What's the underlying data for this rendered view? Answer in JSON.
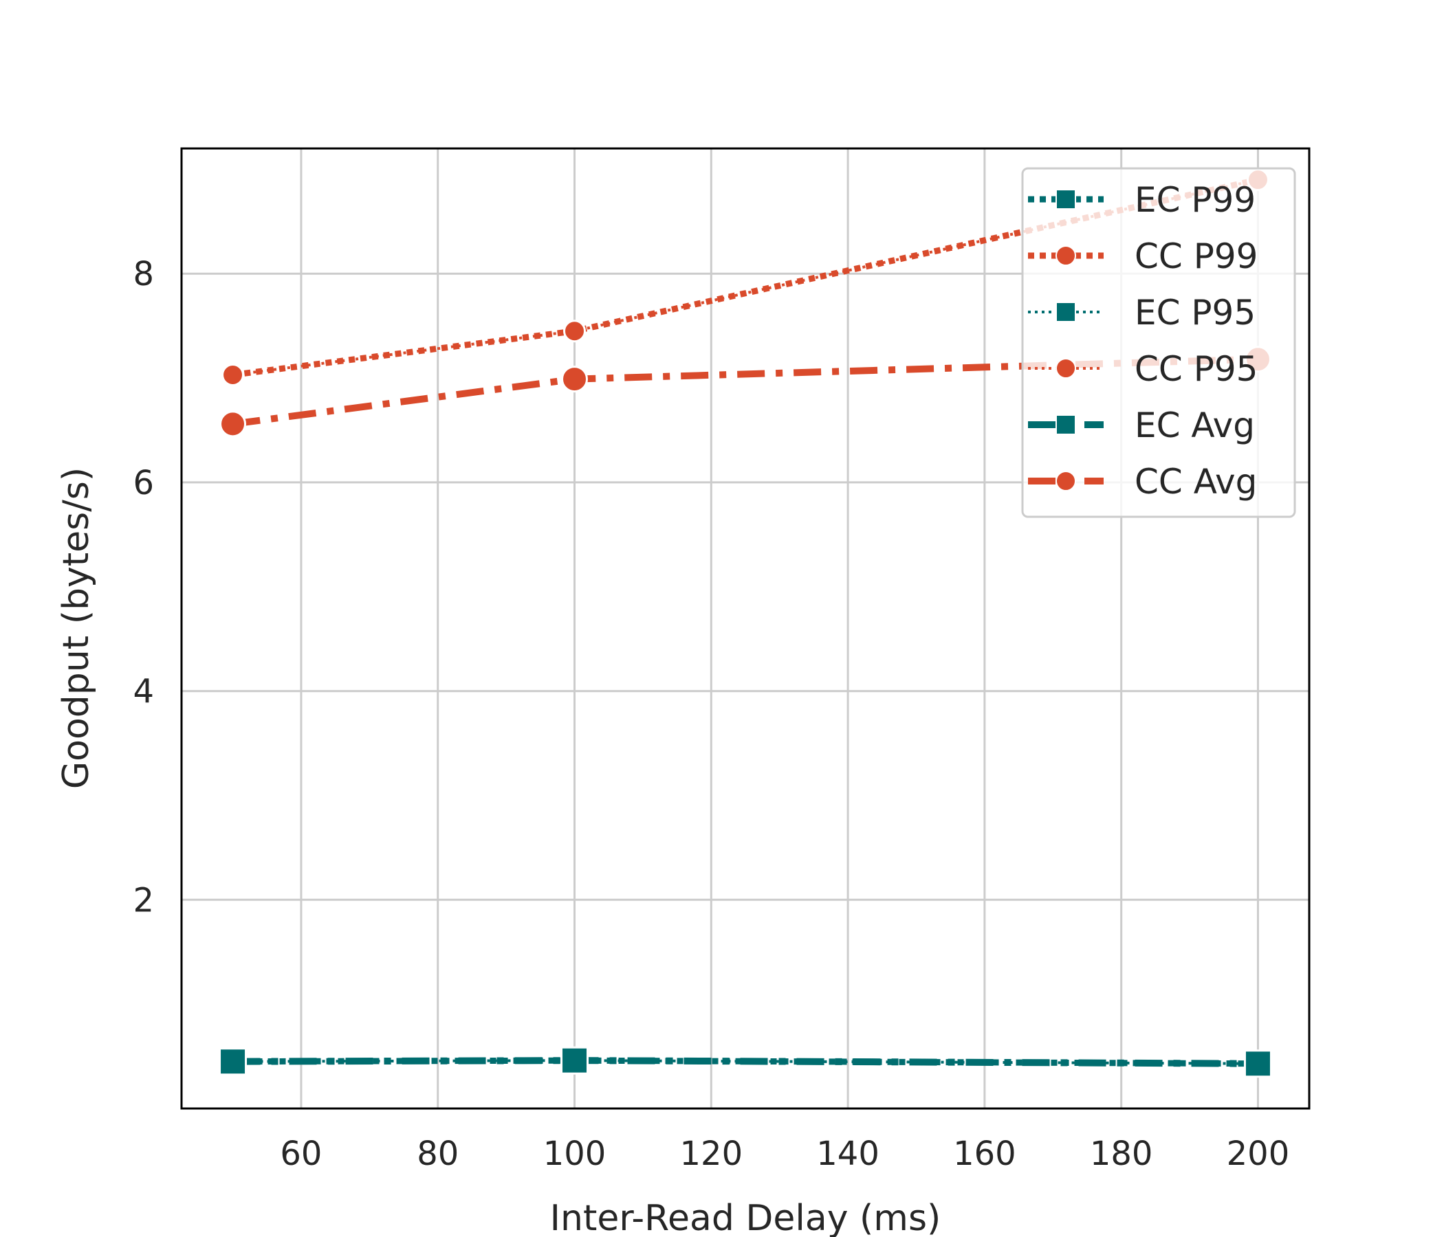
{
  "chart_data": {
    "type": "line",
    "title": "",
    "xlabel": "Inter-Read Delay (ms)",
    "ylabel": "Goodput (bytes/s)",
    "xlim": [
      42.5,
      207.5
    ],
    "ylim": [
      0,
      9.2
    ],
    "xticks": [
      60,
      80,
      100,
      120,
      140,
      160,
      180,
      200
    ],
    "yticks": [
      2,
      4,
      6,
      8
    ],
    "grid": true,
    "legend_position": "top-right",
    "x": [
      50,
      100,
      200
    ],
    "series": [
      {
        "name": "EC P99",
        "values": [
          0.45,
          0.46,
          0.43
        ],
        "color": "#006d6f",
        "marker": "square",
        "linestyle": "dotted"
      },
      {
        "name": "CC P99",
        "values": [
          7.03,
          7.45,
          8.9
        ],
        "color": "#d94a2b",
        "marker": "circle",
        "linestyle": "dotted"
      },
      {
        "name": "EC P95",
        "values": [
          0.45,
          0.46,
          0.43
        ],
        "color": "#006d6f",
        "marker": "square",
        "linestyle": "fine-dotted"
      },
      {
        "name": "CC P95",
        "values": [
          7.03,
          7.45,
          8.9
        ],
        "color": "#d94a2b",
        "marker": "circle",
        "linestyle": "fine-dotted"
      },
      {
        "name": "EC Avg",
        "values": [
          0.45,
          0.46,
          0.43
        ],
        "color": "#006d6f",
        "marker": "square",
        "linestyle": "dashdot"
      },
      {
        "name": "CC Avg",
        "values": [
          6.56,
          6.99,
          7.18
        ],
        "color": "#d94a2b",
        "marker": "circle",
        "linestyle": "dashdot"
      }
    ]
  }
}
